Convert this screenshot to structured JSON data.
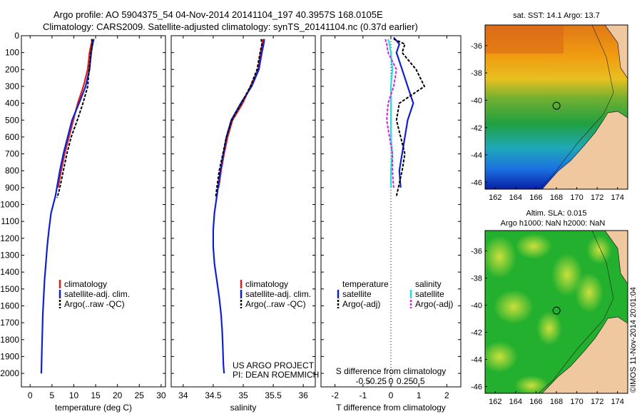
{
  "header": {
    "line1": "Argo profile: AO 5904375_54 04-Nov-2014 20141104_197 40.3957S 168.0105E",
    "line2": "Climatology: CARS2009. Satellite-adjusted climatology: synTS_20141104.nc (0.37d earlier)"
  },
  "colors": {
    "climatology": "#e02020",
    "satellite": "#1020d0",
    "argo": "#000000",
    "satellite_s": "#20e0e0",
    "argo_s": "#e020e0",
    "land": "#f0c8a0",
    "coast": "#202020"
  },
  "chart_data": [
    {
      "type": "line",
      "name": "temperature-profile",
      "xlabel": "temperature (deg C)",
      "ylabel": "",
      "xlim": [
        -2,
        31
      ],
      "ylim": [
        0,
        2080
      ],
      "xticks": [
        0,
        5,
        10,
        15,
        20,
        25,
        30
      ],
      "yticks": [
        0,
        100,
        200,
        300,
        400,
        500,
        600,
        700,
        800,
        900,
        1000,
        1100,
        1200,
        1300,
        1400,
        1500,
        1600,
        1700,
        1800,
        1900,
        2000
      ],
      "series": [
        {
          "name": "climatology",
          "color": "#e02020",
          "x": [
            14.3,
            14.0,
            13.6,
            13.2,
            12.2,
            10.9,
            9.9,
            8.9,
            7.9,
            7.1,
            6.4
          ],
          "y": [
            20,
            50,
            100,
            200,
            300,
            400,
            500,
            600,
            700,
            800,
            900
          ]
        },
        {
          "name": "satellite-adj. clim.",
          "color": "#1020d0",
          "x": [
            14.6,
            14.3,
            14.0,
            13.6,
            12.7,
            11.2,
            9.6,
            8.6,
            7.6,
            6.8,
            5.8,
            4.8,
            4.3,
            3.9,
            3.6,
            3.3,
            3.1,
            2.9,
            2.8,
            2.7,
            2.6,
            2.55
          ],
          "y": [
            20,
            50,
            100,
            200,
            300,
            400,
            500,
            600,
            700,
            800,
            950,
            1050,
            1150,
            1250,
            1350,
            1450,
            1550,
            1650,
            1750,
            1850,
            1950,
            2000
          ]
        },
        {
          "name": "Argo(..raw -QC)",
          "color": "#000000",
          "x": [
            14.1,
            14.2,
            13.9,
            13.5,
            13.2,
            12.1,
            10.8,
            9.4,
            8.4,
            7.6,
            6.8,
            6.2
          ],
          "y": [
            20,
            50,
            100,
            200,
            300,
            400,
            500,
            600,
            700,
            800,
            900,
            960
          ]
        }
      ],
      "legend": [
        "climatology",
        "satellite-adj. clim.",
        "Argo(..raw -QC)"
      ]
    },
    {
      "type": "line",
      "name": "salinity-profile",
      "xlabel": "salinity",
      "xlim": [
        33.8,
        36.2
      ],
      "ylim": [
        0,
        2080
      ],
      "xticks": [
        34,
        34.5,
        35,
        35.5,
        36
      ],
      "xticklabels": [
        "34",
        "34.5",
        "35",
        "35.5",
        "36"
      ],
      "series": [
        {
          "name": "climatology",
          "color": "#e02020",
          "x": [
            35.33,
            35.32,
            35.29,
            35.25,
            35.12,
            34.99,
            34.82,
            34.74,
            34.68,
            34.63,
            34.59
          ],
          "y": [
            20,
            50,
            100,
            200,
            300,
            400,
            500,
            600,
            700,
            800,
            900
          ]
        },
        {
          "name": "satellite-adj. clim.",
          "color": "#1020d0",
          "x": [
            35.35,
            35.34,
            35.31,
            35.26,
            35.14,
            34.96,
            34.8,
            34.72,
            34.67,
            34.62,
            34.56,
            34.52,
            34.5,
            34.5,
            34.52,
            34.56,
            34.6,
            34.63,
            34.65,
            34.66,
            34.67,
            34.68
          ],
          "y": [
            20,
            50,
            100,
            200,
            300,
            400,
            500,
            600,
            700,
            800,
            950,
            1050,
            1150,
            1250,
            1350,
            1450,
            1550,
            1650,
            1750,
            1850,
            1950,
            2000
          ]
        },
        {
          "name": "Argo(..raw -QC)",
          "color": "#000000",
          "x": [
            35.3,
            35.31,
            35.28,
            35.23,
            35.12,
            34.97,
            34.81,
            34.72,
            34.66,
            34.6,
            34.56,
            34.54
          ],
          "y": [
            20,
            50,
            100,
            200,
            300,
            400,
            500,
            600,
            700,
            800,
            900,
            960
          ]
        }
      ],
      "legend": [
        "climatology",
        "satellite-adj. clim.",
        "Argo(..raw -QC)"
      ],
      "annotation": [
        "US ARGO PROJECT",
        "PI: DEAN ROEMMICH"
      ]
    },
    {
      "type": "line",
      "name": "difference-profile",
      "xlabel": "T difference from climatology",
      "xlabel_top": "S difference from climatology",
      "xlim": [
        -2.5,
        2.5
      ],
      "ylim": [
        0,
        2080
      ],
      "xticks": [
        -2,
        -1,
        0,
        1,
        2
      ],
      "xticks_top": [
        -0.5,
        -0.25,
        0,
        0.25,
        0.5
      ],
      "xticklabels_top": [
        "-0.5",
        "-0.25",
        "0",
        "0.25",
        "0.5"
      ],
      "zero_line": "dotted",
      "series": [
        {
          "name": "temperature satellite",
          "color": "#1020d0",
          "x": [
            0.1,
            0.3,
            0.2,
            0.4,
            0.6,
            0.8,
            0.6,
            0.5,
            0.4,
            0.3,
            0.35
          ],
          "y": [
            10,
            50,
            100,
            200,
            300,
            400,
            500,
            600,
            700,
            800,
            900
          ]
        },
        {
          "name": "temperature Argo(-adj)",
          "color": "#000000",
          "x": [
            0.1,
            0.5,
            0.4,
            0.9,
            1.2,
            0.3,
            0.2,
            0.35,
            0.5,
            0.4,
            0.2
          ],
          "y": [
            20,
            50,
            100,
            200,
            300,
            400,
            500,
            600,
            700,
            800,
            950
          ]
        },
        {
          "name": "salinity satellite",
          "color": "#20e0e0",
          "x": [
            -0.1,
            -0.05,
            0.0,
            0.05,
            0.0,
            0.0,
            0.0,
            0.0,
            0.05,
            0.0,
            0.0
          ],
          "y": [
            20,
            50,
            100,
            200,
            300,
            400,
            500,
            600,
            700,
            800,
            900
          ]
        },
        {
          "name": "salinity Argo(-adj)",
          "color": "#e020e0",
          "x": [
            -0.2,
            -0.15,
            -0.1,
            0.2,
            0.1,
            -0.1,
            -0.15,
            -0.05,
            0.05,
            0.05,
            0.1
          ],
          "y": [
            20,
            50,
            100,
            200,
            300,
            400,
            500,
            600,
            700,
            800,
            900
          ]
        }
      ],
      "legend_temperature": {
        "title": "temperature",
        "satellite": "satellite",
        "argo": "Argo(-adj)"
      },
      "legend_salinity": {
        "title": "salinity",
        "satellite": "satellite",
        "argo": "Argo(-adj)"
      }
    },
    {
      "type": "heatmap",
      "name": "sst-map",
      "title": "sat. SST: 14.1  Argo: 13.7",
      "xlim": [
        161,
        175
      ],
      "ylim": [
        -46.5,
        -34.5
      ],
      "xticks": [
        162,
        164,
        166,
        168,
        170,
        172,
        174
      ],
      "yticks": [
        -36,
        -38,
        -40,
        -42,
        -44,
        -46
      ],
      "argo_position": {
        "lon": 168.01,
        "lat": -40.4
      }
    },
    {
      "type": "heatmap",
      "name": "sla-map",
      "title1": "Altim. SLA: 0.015",
      "title2": "Argo h1000: NaN h2000: NaN",
      "xlim": [
        161,
        175
      ],
      "ylim": [
        -46.5,
        -34.5
      ],
      "xticks": [
        162,
        164,
        166,
        168,
        170,
        172,
        174
      ],
      "yticks": [
        -36,
        -38,
        -40,
        -42,
        -44,
        -46
      ],
      "argo_position": {
        "lon": 168.01,
        "lat": -40.4
      }
    }
  ],
  "footer": {
    "stamp": "©IMOS 11-Nov-2014 20:01:04"
  }
}
